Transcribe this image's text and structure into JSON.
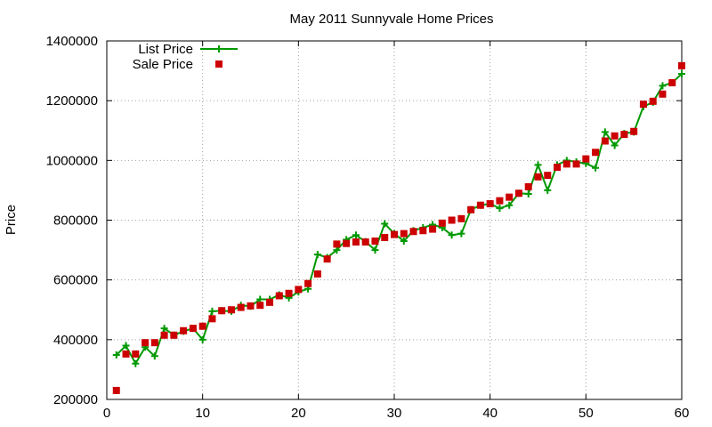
{
  "chart_data": {
    "type": "line",
    "title": "May 2011 Sunnyvale Home Prices",
    "xlabel": "",
    "ylabel": "Price",
    "xlim": [
      0,
      60
    ],
    "ylim": [
      200000,
      1400000
    ],
    "xticks": [
      0,
      10,
      20,
      30,
      40,
      50,
      60
    ],
    "yticks": [
      200000,
      400000,
      600000,
      800000,
      1000000,
      1200000,
      1400000
    ],
    "grid": true,
    "legend_position": "top-left",
    "series": [
      {
        "name": "List Price",
        "style": "line+plus",
        "color": "#009900",
        "x": [
          1,
          2,
          3,
          4,
          5,
          6,
          7,
          8,
          9,
          10,
          11,
          12,
          13,
          14,
          15,
          16,
          17,
          18,
          19,
          20,
          21,
          22,
          23,
          24,
          25,
          26,
          27,
          28,
          29,
          30,
          31,
          32,
          33,
          34,
          35,
          36,
          37,
          38,
          39,
          40,
          41,
          42,
          43,
          44,
          45,
          46,
          47,
          48,
          49,
          50,
          51,
          52,
          53,
          54,
          55,
          56,
          57,
          58,
          59,
          60
        ],
        "y": [
          349000,
          380000,
          320000,
          375000,
          345000,
          438000,
          415000,
          428000,
          438000,
          400000,
          495000,
          497000,
          495000,
          515000,
          512000,
          535000,
          535000,
          550000,
          540000,
          560000,
          570000,
          685000,
          675000,
          700000,
          735000,
          750000,
          728000,
          700000,
          788000,
          755000,
          730000,
          765000,
          775000,
          785000,
          775000,
          750000,
          755000,
          835000,
          850000,
          855000,
          840000,
          850000,
          890000,
          888000,
          985000,
          900000,
          985000,
          1000000,
          995000,
          990000,
          975000,
          1095000,
          1050000,
          1090000,
          1095000,
          1180000,
          1195000,
          1250000,
          1260000,
          1290000
        ]
      },
      {
        "name": "Sale Price",
        "style": "square",
        "color": "#cc0000",
        "x": [
          1,
          2,
          3,
          4,
          5,
          6,
          7,
          8,
          9,
          10,
          11,
          12,
          13,
          14,
          15,
          16,
          17,
          18,
          19,
          20,
          21,
          22,
          23,
          24,
          25,
          26,
          27,
          28,
          29,
          30,
          31,
          32,
          33,
          34,
          35,
          36,
          37,
          38,
          39,
          40,
          41,
          42,
          43,
          44,
          45,
          46,
          47,
          48,
          49,
          50,
          51,
          52,
          53,
          54,
          55,
          56,
          57,
          58,
          59,
          60
        ],
        "y": [
          230000,
          352000,
          352000,
          390000,
          390000,
          415000,
          415000,
          430000,
          438000,
          445000,
          470000,
          497000,
          500000,
          508000,
          513000,
          515000,
          525000,
          547000,
          555000,
          568000,
          588000,
          620000,
          670000,
          720000,
          722000,
          727000,
          727000,
          730000,
          742000,
          752000,
          755000,
          762000,
          765000,
          770000,
          790000,
          800000,
          805000,
          835000,
          850000,
          855000,
          865000,
          877000,
          890000,
          912000,
          945000,
          950000,
          977000,
          988000,
          988000,
          1005000,
          1027000,
          1065000,
          1082000,
          1087000,
          1097000,
          1188000,
          1198000,
          1222000,
          1260000,
          1317000
        ]
      }
    ]
  }
}
